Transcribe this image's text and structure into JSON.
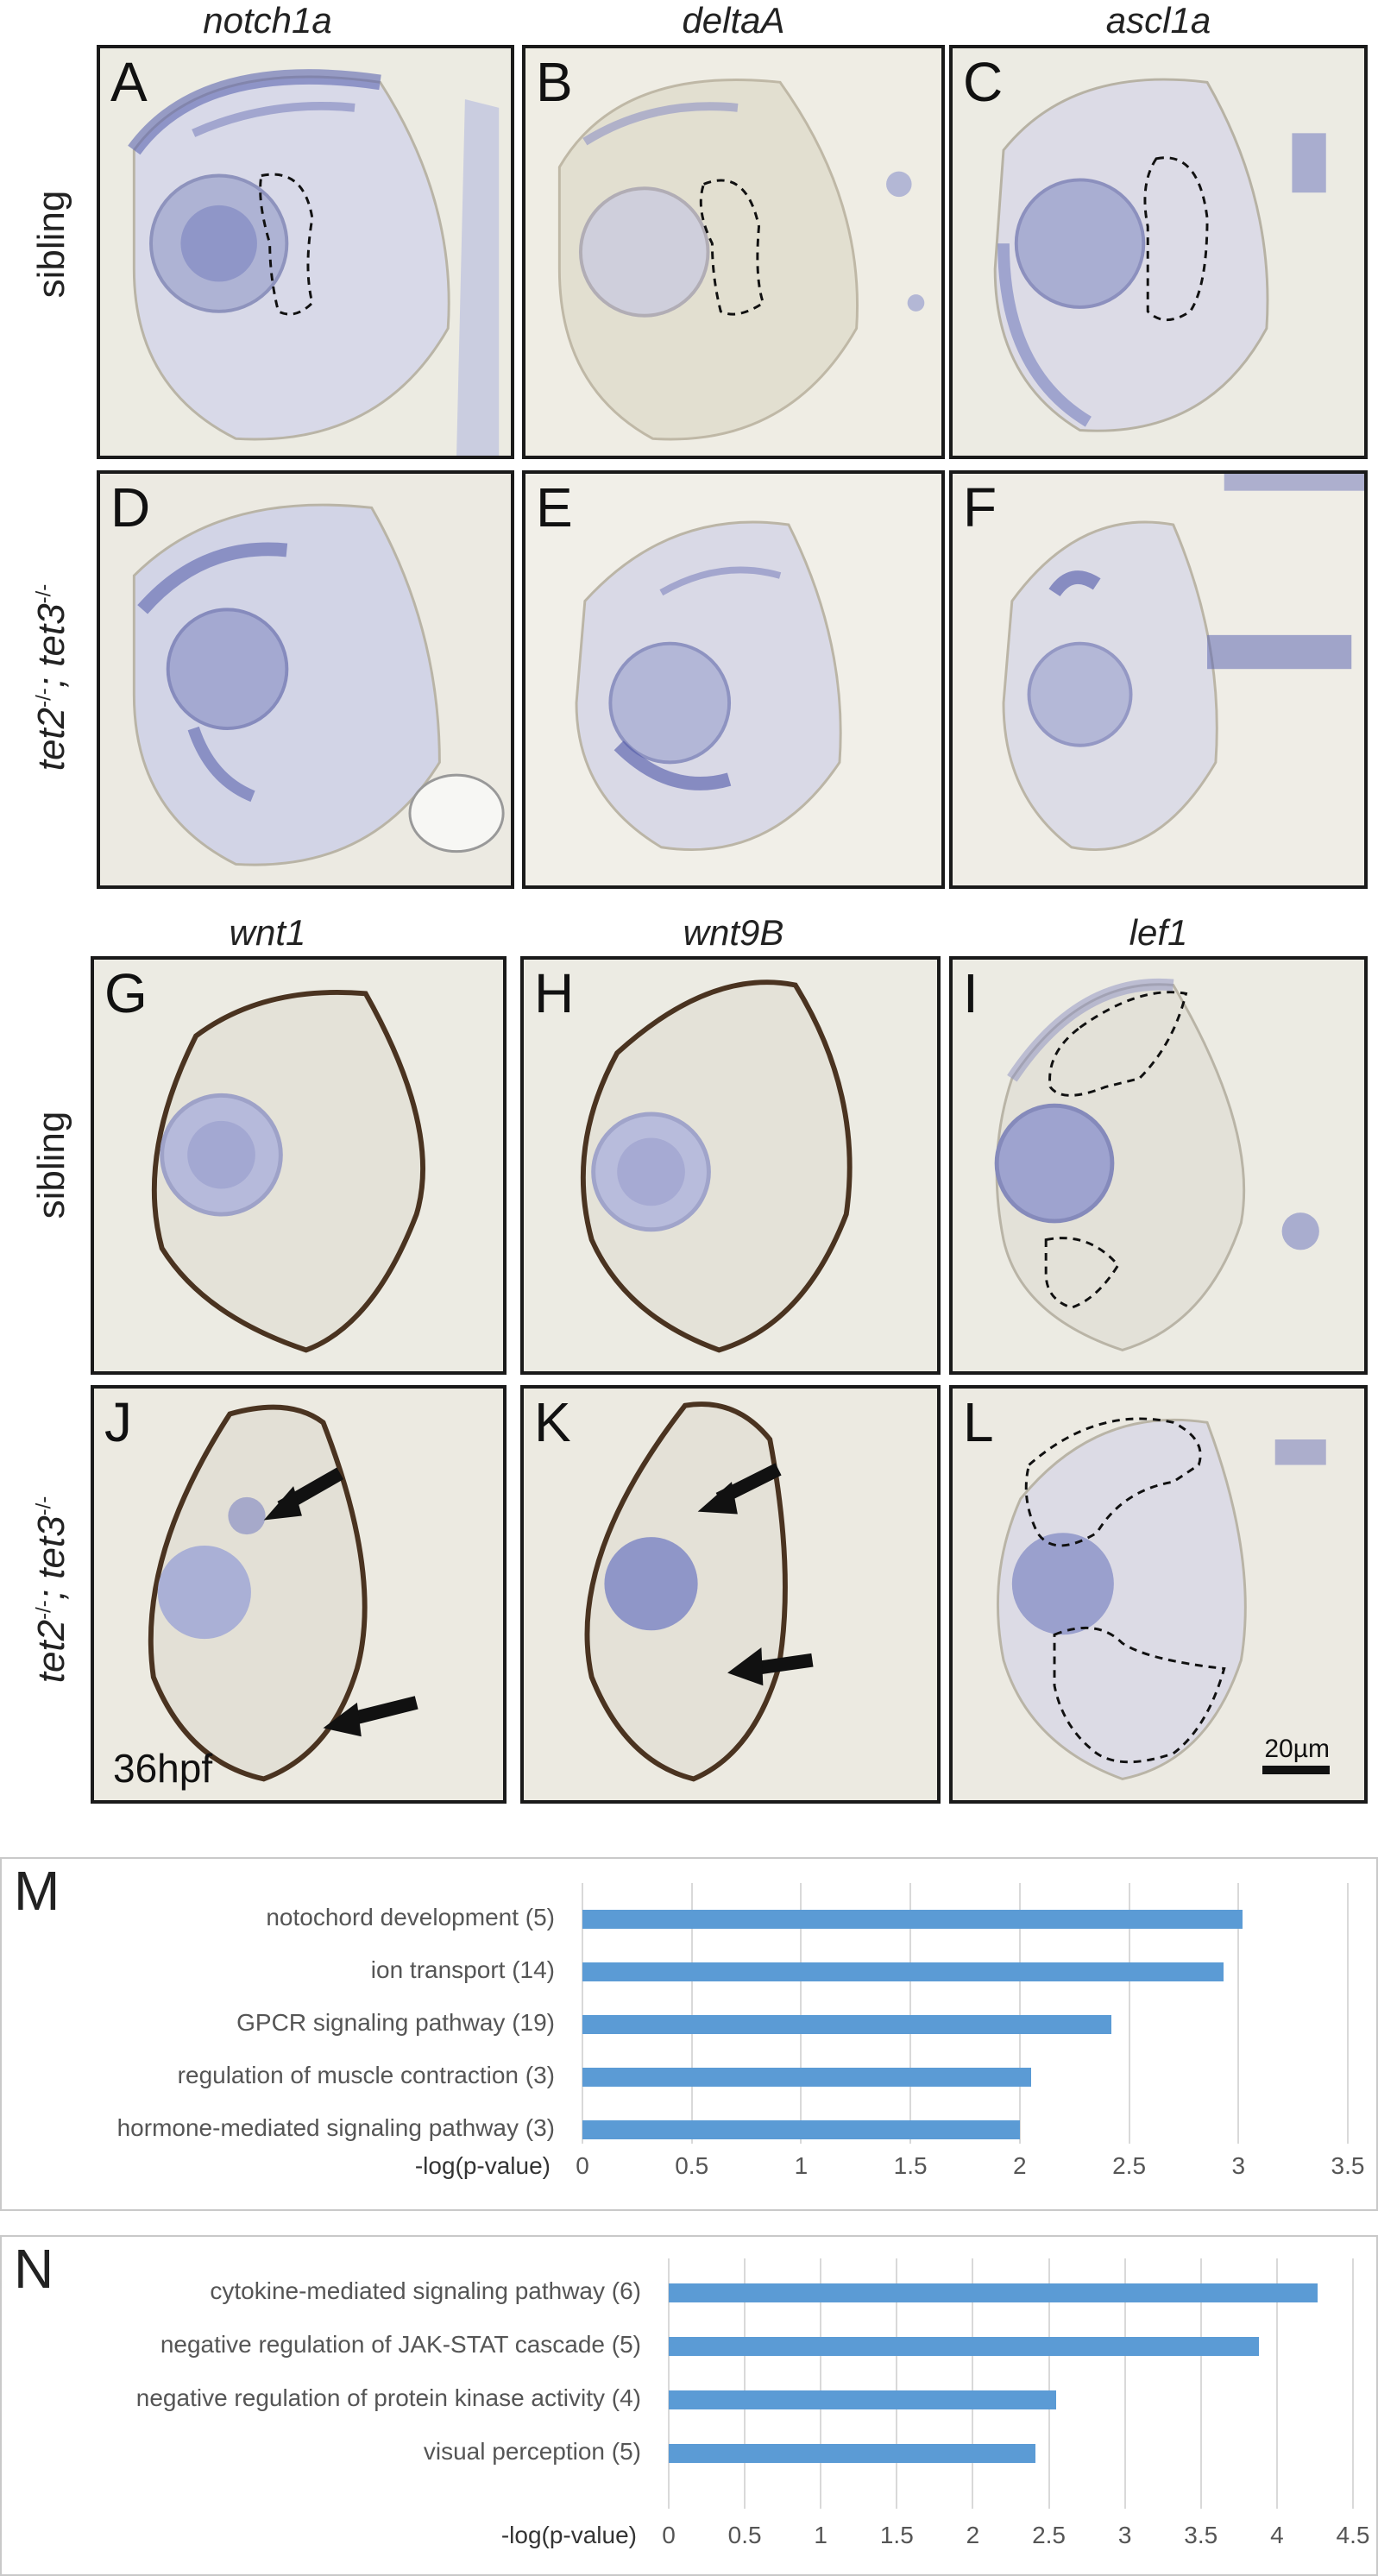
{
  "figure": {
    "top_genes": [
      "notch1a",
      "deltaA",
      "ascl1a"
    ],
    "bottom_genes": [
      "wnt1",
      "wnt9B",
      "lef1"
    ],
    "row_label_sibling": "sibling",
    "row_label_mutant_a": "tet2",
    "row_label_mutant_sup_a": "-/-",
    "row_label_mutant_b": "; tet3",
    "row_label_mutant_sup_b": "-/-",
    "panel_letters": [
      "A",
      "B",
      "C",
      "D",
      "E",
      "F",
      "G",
      "H",
      "I",
      "J",
      "K",
      "L"
    ],
    "stage": "36hpf",
    "scale_bar": "20µm"
  },
  "colors": {
    "bar": "#5b9bd5",
    "grid": "#d9d9d9",
    "stain": "#3a4aa8",
    "pigment": "#4a3320"
  },
  "chart_data": [
    {
      "type": "bar",
      "panel": "M",
      "orientation": "horizontal",
      "categories": [
        "notochord development (5)",
        "ion transport (14)",
        "GPCR signaling pathway (19)",
        "regulation of muscle contraction (3)",
        "hormone-mediated signaling pathway (3)"
      ],
      "values": [
        3.02,
        2.93,
        2.42,
        2.05,
        2.0
      ],
      "xlabel": "-log(p-value)",
      "ticks": [
        "0",
        "0.5",
        "1",
        "1.5",
        "2",
        "2.5",
        "3",
        "3.5"
      ],
      "xlim": [
        0,
        3.5
      ],
      "grid": true
    },
    {
      "type": "bar",
      "panel": "N",
      "orientation": "horizontal",
      "categories": [
        "cytokine-mediated signaling pathway (6)",
        "negative regulation of JAK-STAT cascade (5)",
        "negative regulation of protein kinase activity (4)",
        "visual perception (5)"
      ],
      "values": [
        4.27,
        3.88,
        2.55,
        2.41
      ],
      "xlabel": "-log(p-value)",
      "ticks": [
        "0",
        "0.5",
        "1",
        "1.5",
        "2",
        "2.5",
        "3",
        "3.5",
        "4",
        "4.5"
      ],
      "xlim": [
        0,
        4.5
      ],
      "grid": true
    }
  ]
}
